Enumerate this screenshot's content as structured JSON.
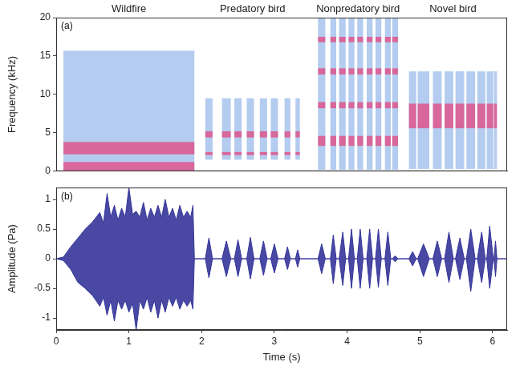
{
  "chart_data": [
    {
      "type": "spectrogram",
      "panel_label": "(a)",
      "y_label": "Frequency (kHz)",
      "xlim": [
        0,
        6.2
      ],
      "ylim": [
        0,
        20
      ],
      "yticks": [
        0,
        5,
        10,
        15,
        20
      ],
      "tick_labels": "y",
      "grid": false,
      "colors": [
        "#a6c3ec",
        "#e6457f"
      ],
      "sections": [
        {
          "title": "Wildfire",
          "times": [
            [
              0.1,
              1.9
            ]
          ],
          "bands": [
            [
              0,
              15.7
            ]
          ],
          "peaks": [
            [
              0,
              1.2
            ],
            [
              2.2,
              3.8
            ]
          ]
        },
        {
          "title": "Predatory bird",
          "times": [
            [
              2.05,
              2.15
            ],
            [
              2.28,
              2.4
            ],
            [
              2.45,
              2.55
            ],
            [
              2.62,
              2.72
            ],
            [
              2.8,
              2.9
            ],
            [
              2.95,
              3.05
            ],
            [
              3.14,
              3.22
            ],
            [
              3.29,
              3.35
            ]
          ],
          "bands": [
            [
              1.5,
              9.5
            ]
          ],
          "peaks": [
            [
              2.1,
              2.5
            ],
            [
              4.4,
              5.2
            ]
          ]
        },
        {
          "title": "Nonpredatory bird",
          "times": [
            [
              3.6,
              3.7
            ],
            [
              3.77,
              3.85
            ],
            [
              3.89,
              3.98
            ],
            [
              4.02,
              4.1
            ],
            [
              4.14,
              4.22
            ],
            [
              4.27,
              4.35
            ],
            [
              4.39,
              4.47
            ],
            [
              4.52,
              4.6
            ],
            [
              4.62,
              4.7
            ]
          ],
          "bands": [
            [
              0.2,
              20
            ]
          ],
          "peaks": [
            [
              3.3,
              4.6
            ],
            [
              8.2,
              9
            ],
            [
              12.6,
              13.4
            ],
            [
              16.8,
              17.5
            ]
          ]
        },
        {
          "title": "Novel bird",
          "times": [
            [
              4.85,
              4.95
            ],
            [
              4.97,
              5.13
            ],
            [
              5.18,
              5.3
            ],
            [
              5.34,
              5.46
            ],
            [
              5.49,
              5.61
            ],
            [
              5.64,
              5.76
            ],
            [
              5.79,
              5.9
            ],
            [
              5.92,
              6.01
            ],
            [
              6.02,
              6.06
            ]
          ],
          "bands": [
            [
              0.3,
              13
            ]
          ],
          "peaks": [
            [
              5.6,
              8.8
            ]
          ]
        }
      ]
    },
    {
      "type": "line",
      "panel_label": "(b)",
      "x_label": "Time (s)",
      "y_label": "Amplitude (Pa)",
      "xlim": [
        0,
        6.2
      ],
      "xticks": [
        0,
        1,
        2,
        3,
        4,
        5,
        6
      ],
      "ylim": [
        -1.2,
        1.2
      ],
      "yticks": [
        -1,
        -0.5,
        0,
        0.5,
        1
      ],
      "grid": false,
      "color": "#35359a",
      "x": [
        0,
        0.1,
        0.2,
        0.3,
        0.4,
        0.5,
        0.6,
        0.65,
        0.7,
        0.75,
        0.8,
        0.85,
        0.9,
        0.95,
        1.0,
        1.05,
        1.1,
        1.15,
        1.2,
        1.25,
        1.3,
        1.35,
        1.4,
        1.45,
        1.5,
        1.55,
        1.6,
        1.65,
        1.7,
        1.75,
        1.8,
        1.85,
        1.88,
        1.9,
        2.05,
        2.1,
        2.15,
        2.28,
        2.34,
        2.4,
        2.45,
        2.5,
        2.55,
        2.62,
        2.67,
        2.72,
        2.8,
        2.85,
        2.9,
        2.95,
        3.0,
        3.05,
        3.14,
        3.18,
        3.22,
        3.29,
        3.32,
        3.35,
        3.6,
        3.65,
        3.7,
        3.77,
        3.81,
        3.85,
        3.89,
        3.94,
        3.98,
        4.02,
        4.06,
        4.1,
        4.14,
        4.18,
        4.22,
        4.27,
        4.31,
        4.35,
        4.39,
        4.43,
        4.47,
        4.52,
        4.56,
        4.6,
        4.62,
        4.66,
        4.7,
        4.85,
        4.9,
        4.95,
        4.97,
        5.05,
        5.13,
        5.18,
        5.24,
        5.3,
        5.34,
        5.4,
        5.46,
        5.49,
        5.55,
        5.61,
        5.64,
        5.7,
        5.76,
        5.79,
        5.85,
        5.9,
        5.92,
        5.96,
        6.01,
        6.02,
        6.04,
        6.06,
        6.2
      ],
      "series": [
        {
          "values": [
            0,
            0.03,
            0.2,
            0.35,
            0.5,
            0.62,
            0.78,
            0.6,
            1.1,
            0.7,
            0.9,
            0.65,
            0.85,
            0.7,
            1.2,
            0.75,
            0.8,
            0.7,
            0.95,
            0.65,
            0.85,
            0.7,
            0.9,
            0.7,
            1.0,
            0.7,
            0.85,
            0.65,
            0.9,
            0.7,
            0.8,
            0.7,
            0.9,
            0,
            0,
            0.35,
            0,
            0,
            0.3,
            0,
            0,
            0.32,
            0,
            0,
            0.36,
            0,
            0,
            0.3,
            0,
            0,
            0.25,
            0,
            0,
            0.2,
            0,
            0,
            0.15,
            0,
            0,
            0.25,
            0,
            0,
            0.4,
            0,
            0,
            0.45,
            0,
            0,
            0.5,
            0,
            0,
            0.5,
            0,
            0,
            0.5,
            0,
            0,
            0.5,
            0,
            0,
            0.45,
            0,
            0,
            0.05,
            0,
            0,
            0.12,
            0,
            0,
            0.25,
            0,
            0,
            0.3,
            0,
            0,
            0.45,
            0,
            0,
            0.35,
            0,
            0,
            0.5,
            0,
            0,
            0.45,
            0,
            0,
            0.55,
            0,
            0,
            0.3,
            0,
            0
          ]
        },
        {
          "values": [
            0,
            -0.03,
            -0.18,
            -0.4,
            -0.5,
            -0.62,
            -0.8,
            -0.65,
            -0.95,
            -0.7,
            -1.05,
            -0.7,
            -0.85,
            -0.7,
            -0.9,
            -0.75,
            -1.2,
            -0.7,
            -0.85,
            -0.65,
            -0.9,
            -0.7,
            -1.0,
            -0.7,
            -0.9,
            -0.65,
            -0.8,
            -0.65,
            -0.85,
            -0.7,
            -0.8,
            -0.7,
            -0.85,
            0,
            0,
            -0.32,
            0,
            0,
            -0.3,
            0,
            0,
            -0.3,
            0,
            0,
            -0.34,
            0,
            0,
            -0.28,
            0,
            0,
            -0.24,
            0,
            0,
            -0.18,
            0,
            0,
            -0.14,
            0,
            0,
            -0.25,
            0,
            0,
            -0.42,
            0,
            0,
            -0.45,
            0,
            0,
            -0.5,
            0,
            0,
            -0.5,
            0,
            0,
            -0.5,
            0,
            0,
            -0.48,
            0,
            0,
            -0.45,
            0,
            0,
            -0.05,
            0,
            0,
            -0.12,
            0,
            0,
            -0.3,
            0,
            0,
            -0.3,
            0,
            0,
            -0.4,
            0,
            0,
            -0.35,
            0,
            0,
            -0.55,
            0,
            0,
            -0.4,
            0,
            0,
            -0.5,
            0,
            0,
            -0.3,
            0,
            0
          ]
        }
      ]
    }
  ]
}
